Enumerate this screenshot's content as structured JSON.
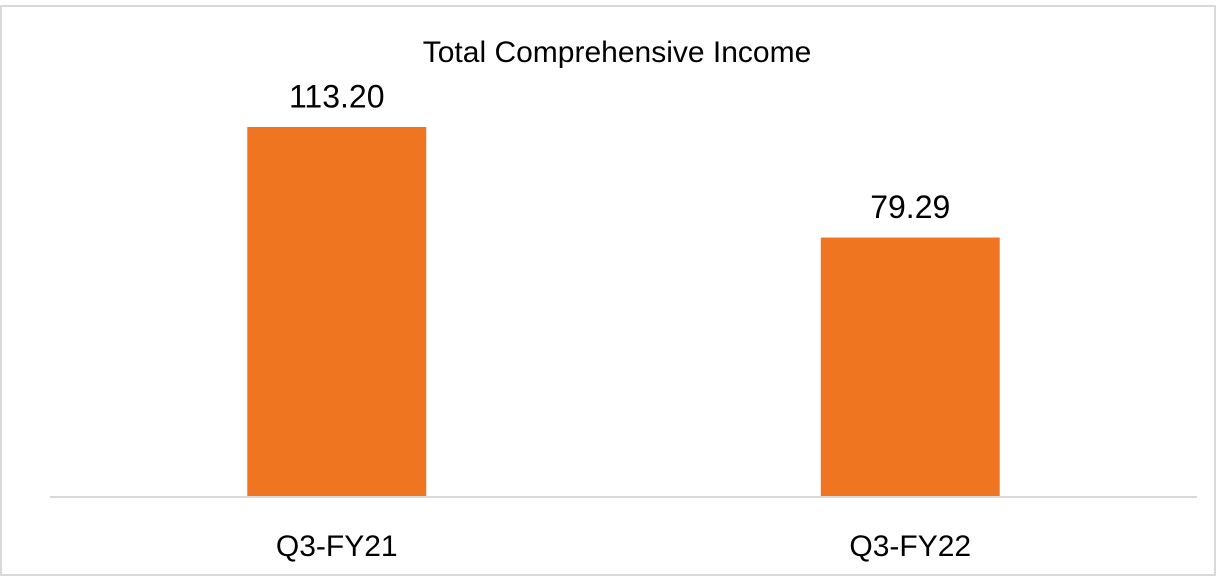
{
  "chart_data": {
    "type": "bar",
    "title": "Total Comprehensive Income",
    "categories": [
      "Q3-FY21",
      "Q3-FY22"
    ],
    "values": [
      113.2,
      79.29
    ],
    "value_labels": [
      "113.20",
      "79.29"
    ],
    "color": "#f07521"
  }
}
